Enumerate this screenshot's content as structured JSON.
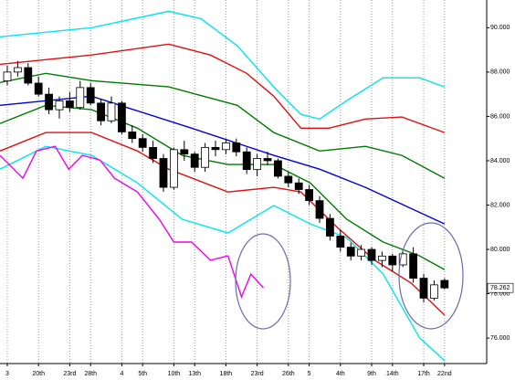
{
  "chart_data": {
    "type": "candlestick",
    "xlim": [
      -0.7,
      46.05
    ],
    "ylim": [
      74.85,
      91.25
    ],
    "xticks": [
      {
        "value": 0,
        "label": "3"
      },
      {
        "value": 3,
        "label": "20th"
      },
      {
        "value": 6,
        "label": "23rd"
      },
      {
        "value": 8,
        "label": "28th"
      },
      {
        "value": 11,
        "label": "4"
      },
      {
        "value": 13,
        "label": "5th"
      },
      {
        "value": 16,
        "label": "10th"
      },
      {
        "value": 18,
        "label": "13th"
      },
      {
        "value": 21,
        "label": "18th"
      },
      {
        "value": 24,
        "label": "23rd"
      },
      {
        "value": 27,
        "label": "26th"
      },
      {
        "value": 29,
        "label": "5"
      },
      {
        "value": 32,
        "label": "4th"
      },
      {
        "value": 35,
        "label": "9th"
      },
      {
        "value": 37,
        "label": "14th"
      },
      {
        "value": 40,
        "label": "17th"
      },
      {
        "value": 42,
        "label": "22nd"
      }
    ],
    "yticks": [
      {
        "value": 76,
        "label": "76.000"
      },
      {
        "value": 78,
        "label": "78.000"
      },
      {
        "value": 80,
        "label": "80.000"
      },
      {
        "value": 82,
        "label": "82.000"
      },
      {
        "value": 84,
        "label": "84.000"
      },
      {
        "value": 86,
        "label": "86.000"
      },
      {
        "value": 88,
        "label": "88.000"
      },
      {
        "value": 90,
        "label": "90.000"
      }
    ],
    "grid": true,
    "last_price": 78.262,
    "candles": {
      "up_color": "#ffffff",
      "down_color": "#000000",
      "open": [
        87.6,
        88.0,
        88.2,
        87.5,
        87.0,
        86.3,
        86.7,
        86.4,
        87.3,
        86.6,
        85.8,
        86.6,
        85.3,
        85.0,
        84.6,
        84.1,
        82.8,
        84.5,
        84.3,
        83.7,
        84.6,
        84.5,
        84.8,
        84.4,
        83.6,
        84.1,
        84.0,
        83.3,
        83.0,
        82.7,
        82.2,
        81.4,
        80.6,
        80.1,
        79.7,
        80.0,
        79.5,
        79.7,
        79.3,
        79.8,
        78.7,
        77.8,
        78.6
      ],
      "high": [
        88.3,
        88.5,
        88.4,
        87.8,
        87.3,
        86.9,
        87.1,
        87.6,
        87.5,
        86.8,
        86.9,
        86.7,
        85.6,
        85.2,
        84.9,
        84.3,
        84.6,
        84.9,
        84.4,
        84.8,
        84.9,
        85.0,
        85.0,
        84.6,
        84.3,
        84.4,
        84.1,
        83.5,
        83.2,
        82.9,
        82.4,
        81.6,
        80.9,
        80.3,
        80.2,
        80.1,
        79.9,
        79.8,
        79.9,
        80.1,
        78.9,
        78.6,
        78.7
      ],
      "low": [
        87.4,
        87.8,
        87.4,
        86.9,
        86.1,
        85.9,
        86.2,
        86.3,
        86.5,
        85.6,
        85.7,
        85.2,
        84.8,
        84.4,
        83.9,
        82.6,
        82.7,
        84.0,
        83.5,
        83.5,
        84.2,
        84.3,
        84.2,
        83.4,
        83.3,
        83.8,
        83.2,
        82.8,
        82.5,
        82.0,
        81.2,
        80.4,
        79.9,
        79.5,
        79.5,
        79.3,
        79.2,
        79.0,
        79.2,
        78.5,
        77.6,
        77.7,
        78.2
      ],
      "close": [
        88.0,
        88.2,
        87.5,
        87.0,
        86.3,
        86.7,
        86.4,
        87.3,
        86.6,
        85.8,
        86.6,
        85.3,
        85.0,
        84.6,
        84.1,
        82.8,
        84.5,
        84.3,
        83.7,
        84.6,
        84.5,
        84.8,
        84.4,
        83.6,
        84.1,
        84.0,
        83.3,
        83.0,
        82.7,
        82.2,
        81.4,
        80.6,
        80.1,
        79.7,
        80.0,
        79.5,
        79.7,
        79.3,
        79.8,
        78.7,
        77.8,
        78.4,
        78.262
      ]
    },
    "lines": [
      {
        "color": "#00e5ee",
        "x": [
          -0.7,
          8.1,
          15.5,
          18.6,
          22.1,
          25.6,
          28.2,
          30,
          32.6,
          36.1,
          39.6,
          42
        ],
        "values": [
          89.59,
          90.0,
          90.74,
          90.41,
          89.18,
          87.33,
          86.09,
          85.88,
          86.71,
          87.74,
          87.74,
          87.33
        ]
      },
      {
        "color": "#e01010",
        "x": [
          -0.7,
          8.1,
          15.5,
          19.5,
          23,
          25.6,
          28.2,
          30.9,
          34.4,
          37.9,
          42
        ],
        "values": [
          88.35,
          88.77,
          89.26,
          88.77,
          87.94,
          86.91,
          85.47,
          85.47,
          85.88,
          85.97,
          85.27
        ]
      },
      {
        "color": "#007a00",
        "x": [
          -0.7,
          3.7,
          8.1,
          15.5,
          22.1,
          25.6,
          30,
          34.4,
          37.9,
          42
        ],
        "values": [
          87.53,
          87.94,
          87.61,
          87.33,
          86.5,
          85.27,
          84.44,
          84.65,
          84.24,
          83.21
        ]
      },
      {
        "color": "#0000e0",
        "x": [
          -0.7,
          8.1,
          17.7,
          25.6,
          30,
          34.4,
          42
        ],
        "values": [
          86.5,
          86.91,
          85.47,
          84.24,
          83.62,
          82.8,
          81.15
        ]
      },
      {
        "color": "#007a00",
        "x": [
          -0.7,
          3.7,
          8.1,
          12.5,
          16.8,
          21.2,
          25.6,
          29.1,
          32.6,
          36.1,
          39.6,
          42
        ],
        "values": [
          85.68,
          86.5,
          86.3,
          85.47,
          84.24,
          83.83,
          83.83,
          83.0,
          81.36,
          80.33,
          79.71,
          79.09
        ]
      },
      {
        "color": "#e01010",
        "x": [
          -0.7,
          3.7,
          8.1,
          12.5,
          15.5,
          21.2,
          25.6,
          28.2,
          31.8,
          35.3,
          38.8,
          42
        ],
        "values": [
          84.44,
          85.27,
          85.27,
          84.44,
          83.62,
          82.59,
          82.8,
          82.59,
          80.95,
          79.51,
          78.48,
          77.04
        ]
      },
      {
        "color": "#00e5ee",
        "x": [
          -0.7,
          3.7,
          8.1,
          12.5,
          16.8,
          21.2,
          25.6,
          29.1,
          32.6,
          36.1,
          39.6,
          42
        ],
        "values": [
          83.62,
          84.65,
          84.24,
          83.0,
          81.36,
          80.74,
          81.98,
          81.15,
          80.53,
          78.89,
          76.01,
          74.98
        ]
      },
      {
        "color": "#ee00ee",
        "x": [
          -0.7,
          1.5,
          2.8,
          4.6,
          5.9,
          7.2,
          8.9,
          10.3,
          12.5,
          14.6,
          16,
          17.7,
          19.5,
          21.2,
          22.5,
          23.4,
          24.6
        ],
        "values": [
          84.24,
          83.21,
          84.44,
          84.65,
          83.62,
          84.24,
          84.03,
          83.21,
          82.59,
          81.36,
          80.33,
          80.33,
          79.51,
          79.71,
          77.86,
          78.89,
          78.27
        ]
      }
    ]
  }
}
